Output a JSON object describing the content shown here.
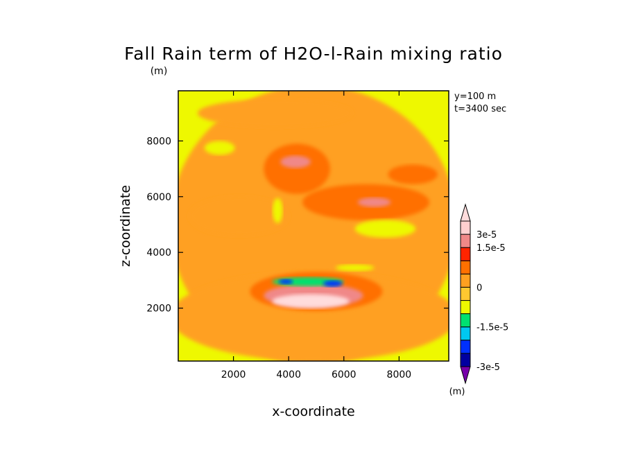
{
  "chart_data": {
    "type": "heatmap",
    "title": "Fall Rain term of H2O-l-Rain mixing ratio",
    "units_label": "(m)",
    "xlabel": "x-coordinate",
    "ylabel": "z-coordinate",
    "info": [
      "y=100 m",
      "t=3400 sec"
    ],
    "xlim": [
      0,
      9800
    ],
    "ylim": [
      100,
      9800
    ],
    "xticks": [
      2000,
      4000,
      6000,
      8000
    ],
    "yticks": [
      2000,
      4000,
      6000,
      8000
    ],
    "colorbar": {
      "unit": "(m)",
      "labels": [
        "3e-5",
        "1.5e-5",
        "0",
        "-1.5e-5",
        "-3e-5"
      ],
      "label_values": [
        3e-05,
        1.5e-05,
        0,
        -1.5e-05,
        -3e-05
      ],
      "levels": [
        -3e-05,
        -2.5e-05,
        -2e-05,
        -1.5e-05,
        -1e-05,
        -5e-06,
        0,
        5e-06,
        1e-05,
        1.5e-05,
        2e-05,
        2.5e-05,
        3e-05
      ],
      "colors": [
        "#7700aa",
        "#0000a0",
        "#0030ff",
        "#00c8f0",
        "#00e070",
        "#eef800",
        "#ffc830",
        "#ffa020",
        "#ff7000",
        "#ff2400",
        "#f08888",
        "#ffd0d0",
        "#ffdcdc"
      ]
    },
    "features": [
      {
        "name": "background-low",
        "value": 2e-06,
        "x": 4900,
        "z": 5000,
        "rx": 5200,
        "rz": 5000
      },
      {
        "name": "upper-orange-band",
        "value": 4e-06,
        "x": 3500,
        "z": 9000,
        "rx": 2800,
        "rz": 500
      },
      {
        "name": "upper-left-green",
        "value": -7e-06,
        "x": 1500,
        "z": 7750,
        "rx": 550,
        "rz": 250
      },
      {
        "name": "central-orange-blob",
        "value": 6e-06,
        "x": 4300,
        "z": 7000,
        "rx": 1200,
        "rz": 900
      },
      {
        "name": "central-red-core",
        "value": 1.7e-05,
        "x": 4250,
        "z": 7250,
        "rx": 550,
        "rz": 220
      },
      {
        "name": "right-orange-band",
        "value": 6e-06,
        "x": 6800,
        "z": 5800,
        "rx": 2300,
        "rz": 650
      },
      {
        "name": "right-red-core",
        "value": 1.6e-05,
        "x": 7100,
        "z": 5800,
        "rx": 600,
        "rz": 170
      },
      {
        "name": "upper-right-orange",
        "value": 6e-06,
        "x": 8500,
        "z": 6800,
        "rx": 900,
        "rz": 350
      },
      {
        "name": "right-green-ellipse",
        "value": -7e-06,
        "x": 7500,
        "z": 4850,
        "rx": 1100,
        "rz": 320
      },
      {
        "name": "left-orange-streak",
        "value": 4e-06,
        "x": 2200,
        "z": 5300,
        "rx": 1800,
        "rz": 700
      },
      {
        "name": "small-green-streak",
        "value": -7e-06,
        "x": 3600,
        "z": 5500,
        "rx": 180,
        "rz": 450
      },
      {
        "name": "lower-orange-layer",
        "value": 4e-06,
        "x": 4900,
        "z": 1700,
        "rx": 5200,
        "rz": 1600
      },
      {
        "name": "low-band-orange",
        "value": 6e-06,
        "x": 5000,
        "z": 2600,
        "rx": 2400,
        "rz": 700
      },
      {
        "name": "rain-red-arc",
        "value": 1.8e-05,
        "x": 4900,
        "z": 2450,
        "rx": 1800,
        "rz": 420
      },
      {
        "name": "rain-pink-core",
        "value": 2.6e-05,
        "x": 4800,
        "z": 2250,
        "rx": 1400,
        "rz": 250
      },
      {
        "name": "rain-cyan-top",
        "value": -1.3e-05,
        "x": 4700,
        "z": 2950,
        "rx": 1300,
        "rz": 160
      },
      {
        "name": "rain-blue-core",
        "value": -2.2e-05,
        "x": 5600,
        "z": 2880,
        "rx": 350,
        "rz": 110
      },
      {
        "name": "rain-blue-left",
        "value": -2.2e-05,
        "x": 3900,
        "z": 2950,
        "rx": 250,
        "rz": 90
      },
      {
        "name": "mid-green-strip",
        "value": -7e-06,
        "x": 6400,
        "z": 3450,
        "rx": 700,
        "rz": 120
      }
    ]
  }
}
